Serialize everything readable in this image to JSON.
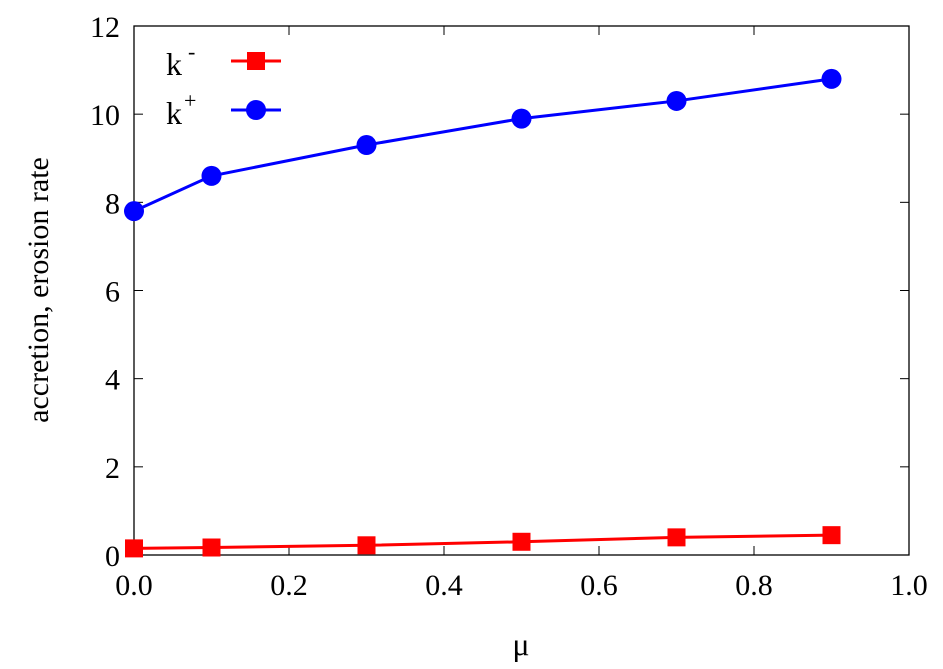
{
  "chart_data": {
    "type": "line",
    "title": "",
    "xlabel": "μ",
    "ylabel": "accretion, erosion rate",
    "xlim": [
      0,
      1
    ],
    "ylim": [
      0,
      12
    ],
    "xticks": [
      "0.0",
      "0.2",
      "0.4",
      "0.6",
      "0.8",
      "1.0"
    ],
    "yticks": [
      "0",
      "2",
      "4",
      "6",
      "8",
      "10",
      "12"
    ],
    "grid": false,
    "legend_placement": "top-left",
    "x": [
      0,
      0.1,
      0.3,
      0.5,
      0.7,
      0.9
    ],
    "series": [
      {
        "name": "k-",
        "label_base": "k",
        "label_sup": "-",
        "color": "#ff0000",
        "marker": "square",
        "values": [
          0.15,
          0.17,
          0.22,
          0.3,
          0.4,
          0.45
        ]
      },
      {
        "name": "k+",
        "label_base": "k",
        "label_sup": "+",
        "color": "#0000ff",
        "marker": "circle",
        "values": [
          7.8,
          8.6,
          9.3,
          9.9,
          10.3,
          10.8
        ]
      }
    ]
  }
}
